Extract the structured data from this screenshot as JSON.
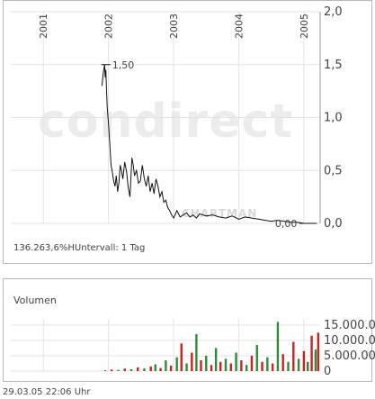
{
  "chart_data": [
    {
      "type": "line",
      "title": "",
      "xlabel": "",
      "ylabel": "",
      "x_ticks": [
        "2001",
        "2002",
        "2003",
        "2004",
        "2005"
      ],
      "y_ticks": [
        "0,0",
        "0,5",
        "1,0",
        "1,5",
        "2,0"
      ],
      "ylim": [
        0,
        2.0
      ],
      "xlim": [
        2000.5,
        2005.25
      ],
      "grid": true,
      "annotations": [
        {
          "label": "1,50",
          "x": 2001.96,
          "y": 1.5
        },
        {
          "label": "0,00",
          "x": 2005.0,
          "y": 0.0
        }
      ],
      "series": [
        {
          "x": [
            2001.9,
            2001.92,
            2001.94,
            2001.95,
            2001.96,
            2001.97,
            2001.98,
            2002.0,
            2002.02,
            2002.04,
            2002.06,
            2002.08,
            2002.1,
            2002.12,
            2002.14,
            2002.16,
            2002.18,
            2002.2,
            2002.22,
            2002.25,
            2002.28,
            2002.3,
            2002.33,
            2002.36,
            2002.38,
            2002.4,
            2002.43,
            2002.46,
            2002.49,
            2002.52,
            2002.55,
            2002.58,
            2002.61,
            2002.64,
            2002.67,
            2002.7,
            2002.73,
            2002.76,
            2002.79,
            2002.82,
            2002.85,
            2002.88,
            2002.91,
            2002.94,
            2002.97,
            2003.0,
            2003.05,
            2003.1,
            2003.15,
            2003.2,
            2003.25,
            2003.3,
            2003.35,
            2003.4,
            2003.5,
            2003.6,
            2003.7,
            2003.8,
            2003.9,
            2004.0,
            2004.1,
            2004.2,
            2004.3,
            2004.4,
            2004.5,
            2004.6,
            2004.7,
            2004.8,
            2004.9,
            2005.0,
            2005.1,
            2005.2
          ],
          "values": [
            1.3,
            1.42,
            1.5,
            1.38,
            1.45,
            1.25,
            1.1,
            0.95,
            0.75,
            0.55,
            0.48,
            0.4,
            0.35,
            0.45,
            0.3,
            0.38,
            0.55,
            0.5,
            0.42,
            0.58,
            0.48,
            0.35,
            0.25,
            0.62,
            0.55,
            0.45,
            0.5,
            0.38,
            0.4,
            0.55,
            0.42,
            0.35,
            0.45,
            0.3,
            0.38,
            0.28,
            0.42,
            0.35,
            0.25,
            0.3,
            0.2,
            0.22,
            0.15,
            0.12,
            0.08,
            0.05,
            0.12,
            0.06,
            0.08,
            0.1,
            0.06,
            0.08,
            0.05,
            0.09,
            0.07,
            0.08,
            0.06,
            0.05,
            0.07,
            0.04,
            0.06,
            0.05,
            0.04,
            0.03,
            0.02,
            0.03,
            0.02,
            0.01,
            0.01,
            0.0,
            0.0,
            0.0
          ]
        }
      ]
    },
    {
      "type": "bar",
      "title": "Volumen",
      "xlabel": "",
      "ylabel": "",
      "y_ticks": [
        "0",
        "5.000.000",
        "10.000.000",
        "15.000.000"
      ],
      "ylim": [
        0,
        17000000
      ],
      "grid": true,
      "colors": [
        "#2e8b3a",
        "#cc2222"
      ],
      "series": [
        {
          "x": [
            2001.95,
            2002.05,
            2002.15,
            2002.25,
            2002.35,
            2002.45,
            2002.55,
            2002.65,
            2002.72,
            2002.8,
            2002.88,
            2002.96,
            2003.05,
            2003.12,
            2003.2,
            2003.28,
            2003.35,
            2003.42,
            2003.5,
            2003.58,
            2003.65,
            2003.72,
            2003.8,
            2003.88,
            2003.96,
            2004.04,
            2004.12,
            2004.2,
            2004.28,
            2004.36,
            2004.44,
            2004.52,
            2004.6,
            2004.68,
            2004.76,
            2004.84,
            2004.92,
            2005.0,
            2005.06,
            2005.12,
            2005.18,
            2005.22
          ],
          "values": [
            300000,
            500000,
            400000,
            800000,
            600000,
            1200000,
            900000,
            1500000,
            2200000,
            1000000,
            3500000,
            1800000,
            4500000,
            9000000,
            2500000,
            6000000,
            12000000,
            3500000,
            5000000,
            2000000,
            7500000,
            3000000,
            4000000,
            2500000,
            6000000,
            3500000,
            2000000,
            5000000,
            8500000,
            3000000,
            4500000,
            2500000,
            16000000,
            5500000,
            3000000,
            9500000,
            4000000,
            6500000,
            3000000,
            11500000,
            7000000,
            12500000
          ]
        }
      ]
    }
  ],
  "price_panel": {
    "footnote": "136.263,6%HUntervall: 1 Tag",
    "watermark": "condirect",
    "watermark2": "CHARTMAN"
  },
  "volume_panel": {
    "label": "Volumen"
  },
  "timestamp": "29.03.05   22:06 Uhr",
  "colors": {
    "line": "#111111",
    "grid": "#e3e3e3",
    "border": "#b9b9b9",
    "vol_up": "#2e8b3a",
    "vol_down": "#cc2222"
  }
}
